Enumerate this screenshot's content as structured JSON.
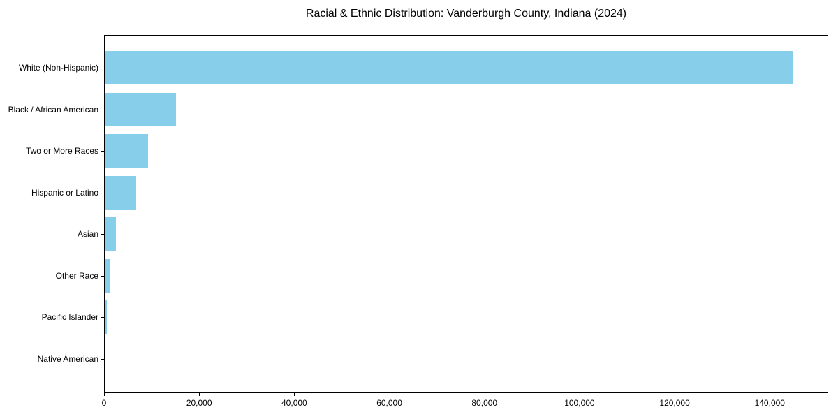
{
  "chart_data": {
    "type": "bar",
    "orientation": "horizontal",
    "title": "Racial & Ethnic Distribution: Vanderburgh County, Indiana (2024)",
    "categories": [
      "White (Non-Hispanic)",
      "Black / African American",
      "Two or More Races",
      "Hispanic or Latino",
      "Asian",
      "Other Race",
      "Pacific Islander",
      "Native American"
    ],
    "values": [
      144800,
      15000,
      9150,
      6600,
      2300,
      1100,
      450,
      0
    ],
    "xlabel": "",
    "ylabel": "",
    "xlim": [
      0,
      152000
    ],
    "x_ticks": [
      0,
      20000,
      40000,
      60000,
      80000,
      100000,
      120000,
      140000
    ],
    "x_tick_labels": [
      "0",
      "20,000",
      "40,000",
      "60,000",
      "80,000",
      "100,000",
      "120,000",
      "140,000"
    ],
    "bar_color": "#87CEEB",
    "axis_color": "#000000",
    "background_color": "#ffffff",
    "grid": false,
    "legend": "none"
  }
}
